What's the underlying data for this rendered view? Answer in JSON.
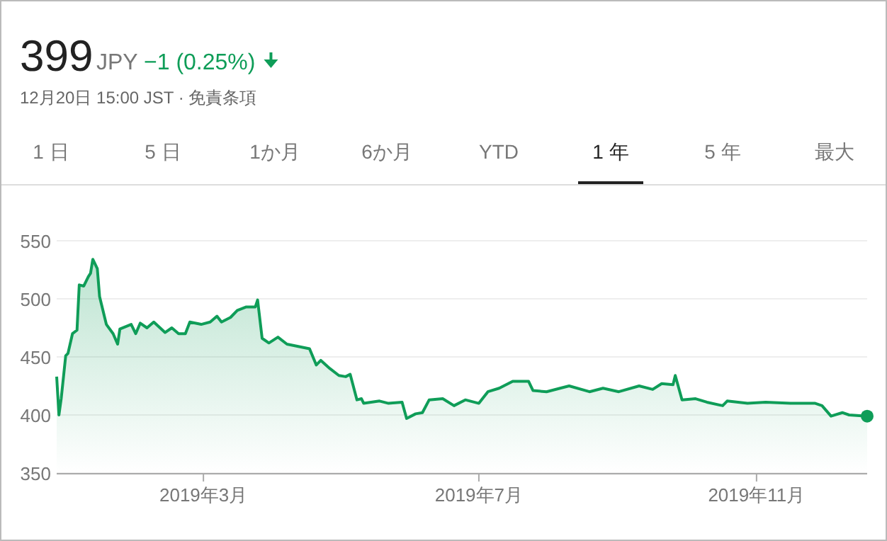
{
  "chart_data": {
    "type": "area",
    "title": "399",
    "subtitle": "JPY −1 (0.25%)",
    "annotations": [
      "12月20日 15:00 JST · 免責条項",
      "1 日",
      "5 日",
      "1か月",
      "6か月",
      "YTD",
      "1 年",
      "5 年",
      "最大"
    ],
    "xlim": [
      "2018-12-26",
      "2019-12-20"
    ],
    "xticks": [
      {
        "value": "2019-03-01",
        "label": "2019年3月"
      },
      {
        "value": "2019-07-01",
        "label": "2019年7月"
      },
      {
        "value": "2019-11-01",
        "label": "2019年11月"
      }
    ],
    "ylim": [
      350,
      550
    ],
    "yticks": [
      350,
      400,
      450,
      500,
      550
    ],
    "grid": "y",
    "series": [
      {
        "color": "#0f9d58",
        "marker": "none",
        "x": [
          "2018-12-26",
          "2018-12-27",
          "2018-12-28",
          "2018-12-30",
          "2018-12-31",
          "2019-01-02",
          "2019-01-04",
          "2019-01-05",
          "2019-01-07",
          "2019-01-09",
          "2019-01-10",
          "2019-01-11",
          "2019-01-13",
          "2019-01-14",
          "2019-01-17",
          "2019-01-20",
          "2019-01-22",
          "2019-01-23",
          "2019-01-28",
          "2019-01-30",
          "2019-02-01",
          "2019-02-04",
          "2019-02-07",
          "2019-02-12",
          "2019-02-15",
          "2019-02-18",
          "2019-02-21",
          "2019-02-23",
          "2019-02-28",
          "2019-03-04",
          "2019-03-07",
          "2019-03-09",
          "2019-03-13",
          "2019-03-16",
          "2019-03-20",
          "2019-03-24",
          "2019-03-25",
          "2019-03-27",
          "2019-03-30",
          "2019-04-03",
          "2019-04-07",
          "2019-04-12",
          "2019-04-17",
          "2019-04-20",
          "2019-04-22",
          "2019-04-26",
          "2019-04-30",
          "2019-05-03",
          "2019-05-05",
          "2019-05-08",
          "2019-05-10",
          "2019-05-11",
          "2019-05-18",
          "2019-05-22",
          "2019-05-28",
          "2019-05-30",
          "2019-06-03",
          "2019-06-06",
          "2019-06-09",
          "2019-06-15",
          "2019-06-20",
          "2019-06-25",
          "2019-07-01",
          "2019-07-05",
          "2019-07-10",
          "2019-07-16",
          "2019-07-23",
          "2019-07-25",
          "2019-07-31",
          "2019-08-06",
          "2019-08-10",
          "2019-08-19",
          "2019-08-25",
          "2019-09-01",
          "2019-09-10",
          "2019-09-16",
          "2019-09-20",
          "2019-09-25",
          "2019-09-26",
          "2019-09-29",
          "2019-10-05",
          "2019-10-10",
          "2019-10-17",
          "2019-10-19",
          "2019-10-28",
          "2019-11-05",
          "2019-11-16",
          "2019-11-27",
          "2019-11-30",
          "2019-12-04",
          "2019-12-09",
          "2019-12-12",
          "2019-12-20"
        ],
        "values": [
          433,
          400,
          414,
          451,
          453,
          470,
          473,
          512,
          511,
          519,
          522,
          534,
          526,
          502,
          478,
          470,
          461,
          474,
          478,
          470,
          479,
          475,
          480,
          471,
          475,
          470,
          470,
          480,
          478,
          480,
          485,
          480,
          484,
          490,
          493,
          493,
          499,
          466,
          462,
          467,
          461,
          459,
          457,
          443,
          447,
          440,
          434,
          433,
          435,
          413,
          414,
          410,
          412,
          410,
          411,
          397,
          401,
          402,
          413,
          414,
          408,
          413,
          410,
          420,
          423,
          429,
          429,
          421,
          420,
          423,
          425,
          420,
          423,
          420,
          425,
          422,
          427,
          426,
          434,
          413,
          414,
          411,
          408,
          412,
          410,
          411,
          410,
          410,
          408,
          399,
          402,
          400,
          399
        ]
      },
      {
        "type": "scatter",
        "color": "#0f9d58",
        "marker": "circle",
        "x": [
          "2019-12-20"
        ],
        "values": [
          399
        ]
      }
    ]
  }
}
